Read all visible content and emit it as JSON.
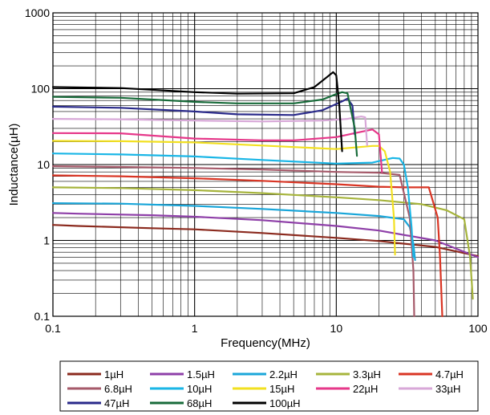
{
  "chart_data": {
    "type": "line",
    "title": "",
    "xlabel": "Frequency(MHz)",
    "ylabel": "Inductance(µH)",
    "x_scale": "log",
    "y_scale": "log",
    "xlim": [
      0.1,
      100
    ],
    "ylim": [
      0.1,
      1000
    ],
    "x_ticks": [
      "0.1",
      "1",
      "10",
      "100"
    ],
    "y_ticks": [
      "0.1",
      "1",
      "10",
      "100",
      "1000"
    ],
    "grid": true,
    "legend_position": "bottom",
    "series": [
      {
        "name": "1µH",
        "color": "#8b2a1e",
        "x": [
          0.1,
          0.15,
          0.5,
          1,
          3,
          10,
          20,
          50,
          100
        ],
        "y": [
          1.6,
          1.55,
          1.45,
          1.4,
          1.25,
          1.08,
          0.98,
          0.82,
          0.62
        ]
      },
      {
        "name": "1.5µH",
        "color": "#8e3fa8",
        "x": [
          0.1,
          0.15,
          0.5,
          1,
          3,
          10,
          20,
          50,
          100
        ],
        "y": [
          2.3,
          2.25,
          2.15,
          2.05,
          1.85,
          1.55,
          1.35,
          1.0,
          0.6
        ]
      },
      {
        "name": "2.2µH",
        "color": "#1aa6d9",
        "x": [
          0.1,
          0.3,
          1,
          3,
          10,
          20,
          30,
          33,
          35,
          36
        ],
        "y": [
          3.1,
          3.05,
          2.85,
          2.6,
          2.3,
          2.1,
          1.9,
          1.5,
          0.9,
          0.55
        ]
      },
      {
        "name": "3.3µH",
        "color": "#a6b43c",
        "x": [
          0.1,
          0.3,
          1,
          3,
          10,
          20,
          40,
          60,
          80,
          88,
          92
        ],
        "y": [
          5.0,
          4.9,
          4.6,
          4.2,
          3.7,
          3.4,
          3.0,
          2.5,
          1.9,
          0.6,
          0.17
        ]
      },
      {
        "name": "4.7µH",
        "color": "#d93524",
        "x": [
          0.1,
          0.3,
          1,
          3,
          10,
          20,
          30,
          45,
          52,
          54,
          56
        ],
        "y": [
          7.2,
          7.0,
          6.6,
          6.1,
          5.5,
          5.1,
          5.0,
          5.0,
          2.0,
          0.6,
          0.1
        ]
      },
      {
        "name": "6.8µH",
        "color": "#a65a6a",
        "x": [
          0.1,
          0.3,
          1,
          3,
          10,
          20,
          28,
          33,
          35,
          35.5
        ],
        "y": [
          9.5,
          9.3,
          9.0,
          8.6,
          8.0,
          7.8,
          7.3,
          2.0,
          0.4,
          0.1
        ]
      },
      {
        "name": "10µH",
        "color": "#1ab6e6",
        "x": [
          0.1,
          0.3,
          1,
          3,
          10,
          18,
          25,
          28,
          30,
          32,
          34,
          35
        ],
        "y": [
          14,
          13.6,
          12.8,
          11.5,
          10.3,
          10.6,
          12.2,
          12.0,
          10.0,
          5.0,
          1.5,
          0.6
        ]
      },
      {
        "name": "15µH",
        "color": "#f2e020",
        "x": [
          0.1,
          0.3,
          1,
          3,
          10,
          18,
          20,
          22,
          24,
          25.5,
          26
        ],
        "y": [
          20.5,
          20.3,
          19.6,
          17.8,
          16.0,
          17.6,
          17.6,
          15.0,
          8.0,
          2.0,
          0.65
        ]
      },
      {
        "name": "22µH",
        "color": "#e6388a",
        "x": [
          0.1,
          0.3,
          1,
          3,
          5,
          10,
          15,
          18,
          20,
          21
        ],
        "y": [
          26,
          25.8,
          22,
          20.8,
          20.8,
          23,
          27,
          29,
          25,
          8
        ]
      },
      {
        "name": "33µH",
        "color": "#d8a8d8",
        "x": [
          0.1,
          0.3,
          1,
          3,
          8,
          12,
          15,
          16,
          16.5
        ],
        "y": [
          40,
          39.5,
          38,
          37,
          38,
          40,
          43,
          42,
          18
        ]
      },
      {
        "name": "47µH",
        "color": "#2a2a8a",
        "x": [
          0.1,
          0.3,
          1,
          2,
          5,
          8,
          11,
          12,
          13,
          13.5
        ],
        "y": [
          58,
          56,
          50,
          46,
          45,
          52,
          68,
          74,
          60,
          25
        ]
      },
      {
        "name": "68µH",
        "color": "#186b3a",
        "x": [
          0.1,
          0.3,
          1,
          2,
          5,
          8,
          10,
          11,
          12,
          13.5,
          14
        ],
        "y": [
          78,
          76,
          67,
          64,
          64,
          72,
          85,
          90,
          87,
          30,
          13
        ]
      },
      {
        "name": "100µH",
        "color": "#000000",
        "x": [
          0.1,
          0.3,
          1,
          2,
          5,
          7,
          8.5,
          9.5,
          10,
          10.5,
          11
        ],
        "y": [
          105,
          102,
          90,
          86,
          87,
          105,
          140,
          165,
          150,
          60,
          15
        ]
      }
    ]
  }
}
